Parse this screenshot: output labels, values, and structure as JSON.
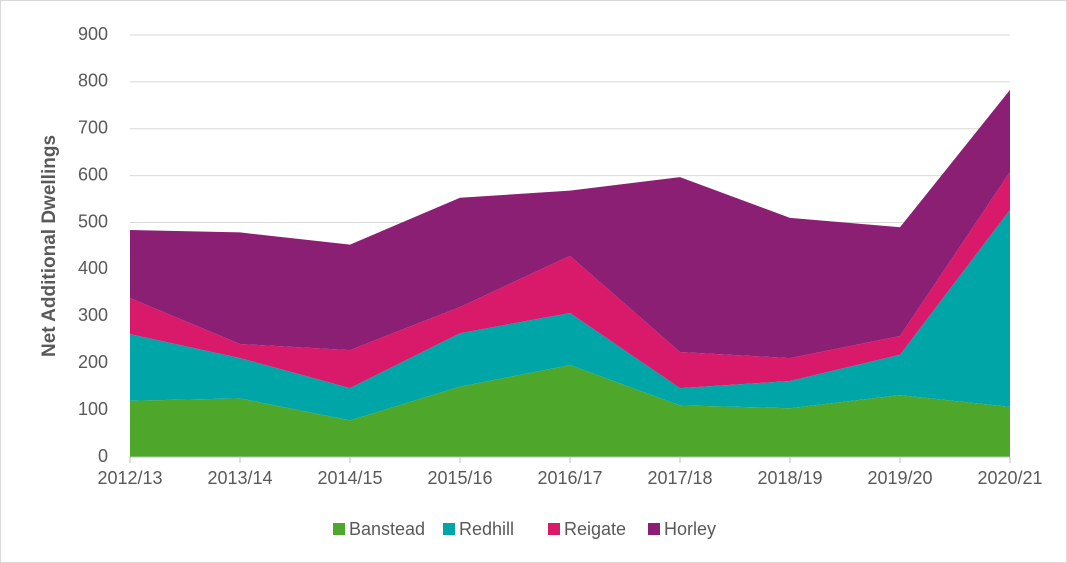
{
  "chart_data": {
    "type": "stacked_area",
    "y_label": "Net Additional Dwellings",
    "categories": [
      "2012/13",
      "2013/14",
      "2014/15",
      "2015/16",
      "2016/17",
      "2017/18",
      "2018/19",
      "2019/20",
      "2020/21"
    ],
    "series": [
      {
        "name": "Banstead",
        "color": "#4ea72a",
        "values": [
          120,
          125,
          78,
          150,
          196,
          110,
          104,
          132,
          107
        ]
      },
      {
        "name": "Redhill",
        "color": "#00a5a8",
        "values": [
          142,
          86,
          69,
          114,
          111,
          37,
          58,
          86,
          420
        ]
      },
      {
        "name": "Reigate",
        "color": "#d91a6b",
        "values": [
          77,
          30,
          81,
          56,
          122,
          77,
          49,
          40,
          81
        ]
      },
      {
        "name": "Horley",
        "color": "#8b1f74",
        "values": [
          145,
          238,
          225,
          233,
          139,
          373,
          299,
          232,
          175
        ]
      }
    ],
    "ylim": [
      0,
      900
    ],
    "yticks": [
      0,
      100,
      200,
      300,
      400,
      500,
      600,
      700,
      800,
      900
    ],
    "grid": true,
    "legend": "bottom"
  }
}
